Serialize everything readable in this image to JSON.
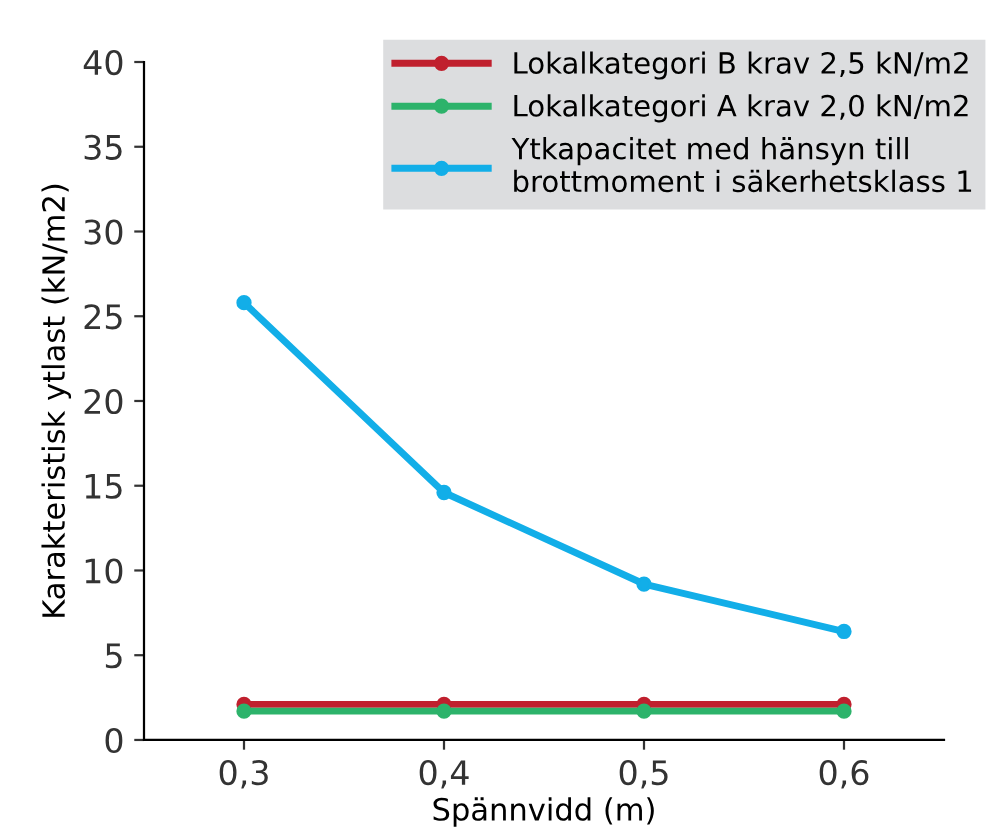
{
  "chart_data": {
    "type": "line",
    "xlabel": "Spännvidd (m)",
    "ylabel": "Karakteristisk ytlast (kN/m2)",
    "x": [
      0.3,
      0.4,
      0.5,
      0.6
    ],
    "series": [
      {
        "name": "Lokalkategori B krav 2,5 kN/m2",
        "color": "#c0202e",
        "values": [
          2.1,
          2.1,
          2.1,
          2.1
        ]
      },
      {
        "name": "Lokalkategori A krav 2,0 kN/m2",
        "color": "#2db36b",
        "values": [
          1.7,
          1.7,
          1.7,
          1.7
        ]
      },
      {
        "name": "Ytkapacitet med hänsyn till\nbrottmoment i säkerhetsklass 1",
        "color": "#12aee8",
        "values": [
          25.8,
          14.6,
          9.2,
          6.4
        ]
      }
    ],
    "xlim": [
      0.25,
      0.65
    ],
    "xticks": [
      {
        "value": 0.3,
        "label": "0,3"
      },
      {
        "value": 0.4,
        "label": "0,4"
      },
      {
        "value": 0.5,
        "label": "0,5"
      },
      {
        "value": 0.6,
        "label": "0,6"
      }
    ],
    "ylim": [
      0,
      40
    ],
    "yticks": [
      0,
      5,
      10,
      15,
      20,
      25,
      30,
      35,
      40
    ],
    "grid": false,
    "legend": "top right",
    "marker": "circle",
    "line_style": "solid"
  }
}
